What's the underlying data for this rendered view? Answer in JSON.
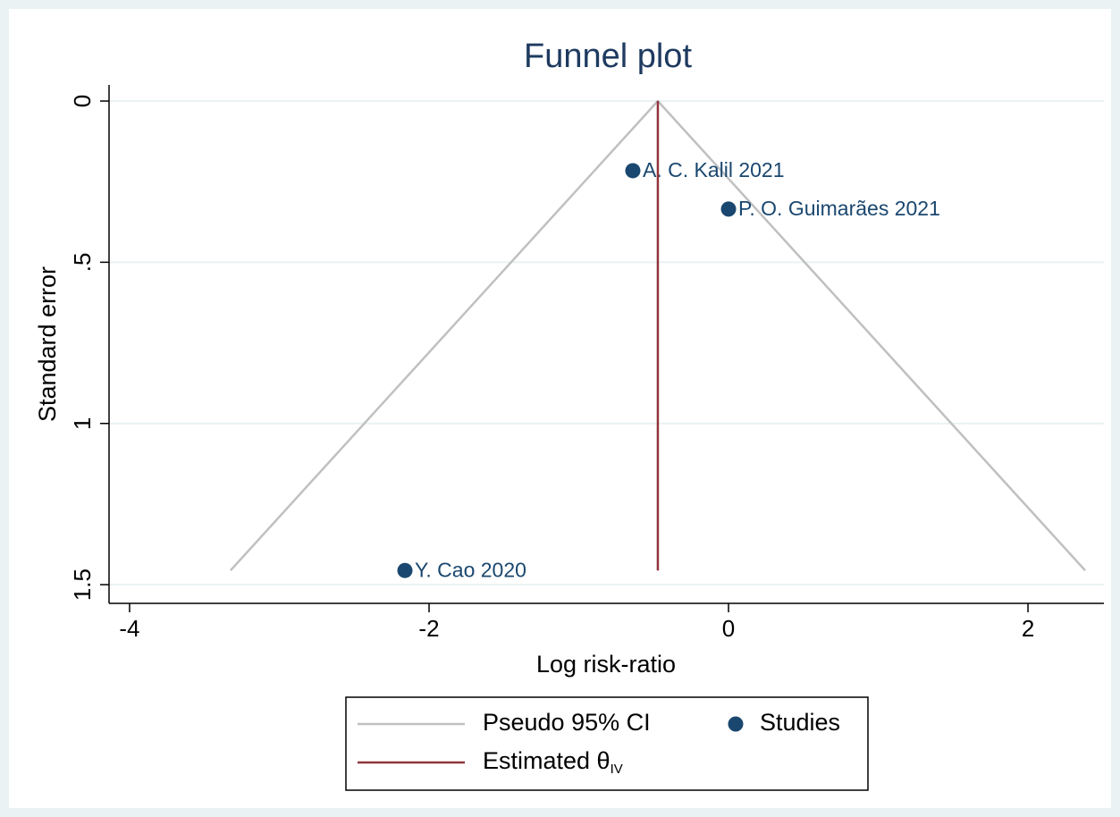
{
  "chart_data": {
    "type": "funnel",
    "title": "Funnel plot",
    "x_label": "Log risk-ratio",
    "y_label": "Standard error",
    "xlim": [
      -4.137,
      2.507
    ],
    "ylim": [
      -0.05,
      1.558
    ],
    "y_reversed": true,
    "xticks": [
      -4,
      -2,
      0,
      2
    ],
    "yticks": [
      0,
      {
        "value": 0.5,
        "label": ".5"
      },
      1,
      1.5
    ],
    "grid": true,
    "series": [
      {
        "name": "Pseudo 95% CI",
        "kind": "line",
        "color": "#c0c0c0",
        "x": [
          -3.326,
          -0.472,
          2.382
        ],
        "values": [
          1.456,
          0,
          1.456
        ]
      },
      {
        "name": "Studies",
        "kind": "scatter",
        "color": "#1a476f",
        "x": [
          -0.639,
          0.0,
          -2.161
        ],
        "values": [
          0.216,
          0.335,
          1.456
        ],
        "labels": [
          "A. C. Kalil 2021",
          "P. O. Guimarães 2021",
          "Y. Cao 2020"
        ]
      },
      {
        "name": "Estimated θ",
        "name_subscript": "IV",
        "kind": "line",
        "color": "#90353b",
        "x": [
          -0.472,
          -0.472
        ],
        "values": [
          0,
          1.456
        ]
      }
    ]
  }
}
